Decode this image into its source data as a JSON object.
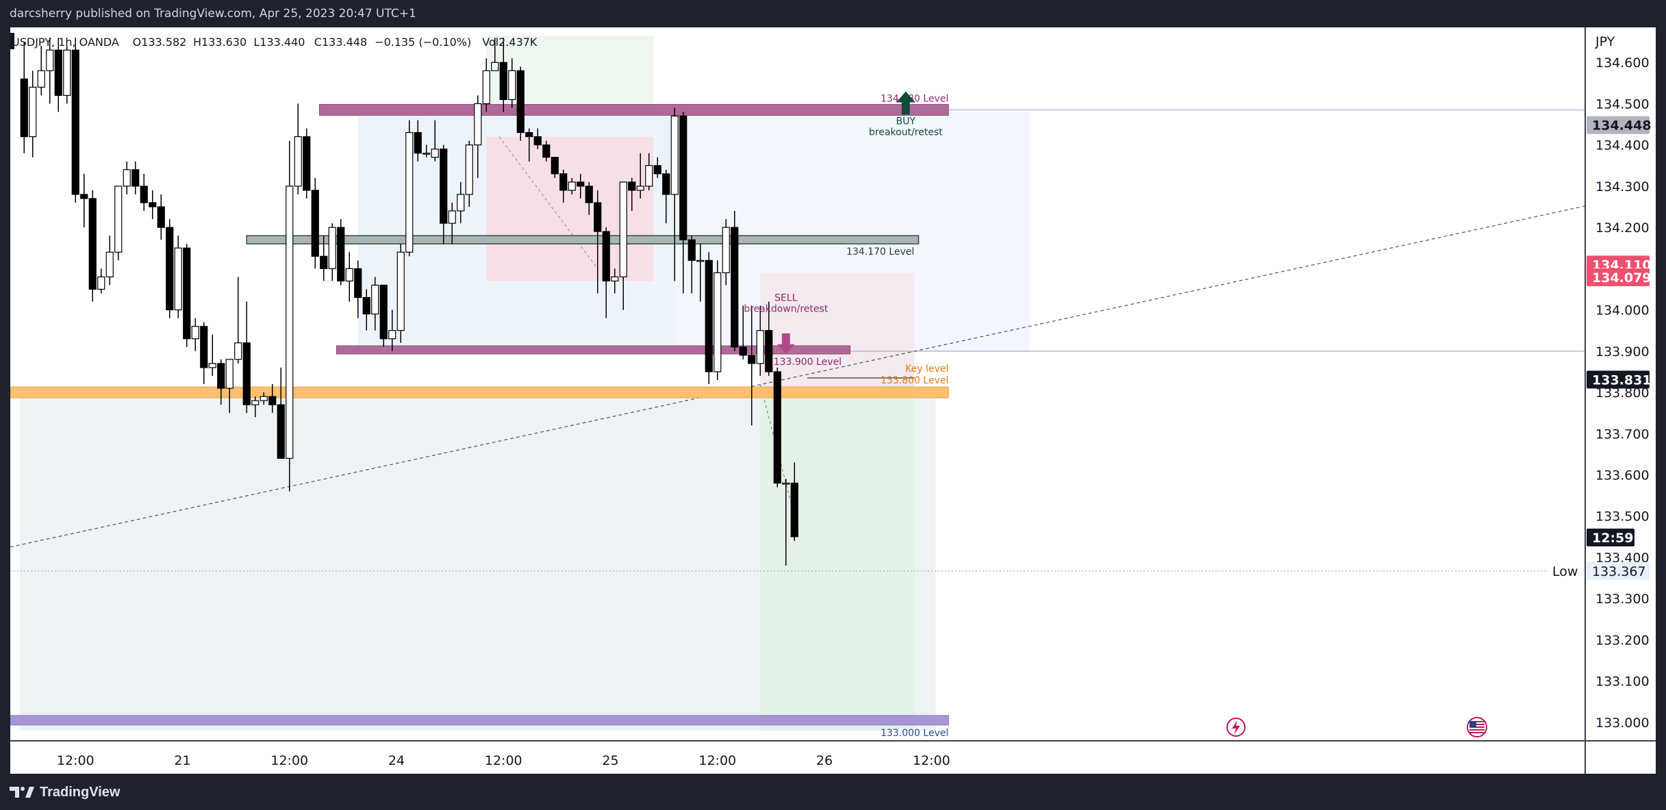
{
  "header": {
    "publisher_text": "darcsherry published on TradingView.com, Apr 25, 2023 20:47 UTC+1"
  },
  "legend": {
    "symbol": "USDJPY, 1h, OANDA",
    "open": "O133.582",
    "high": "H133.630",
    "low": "L133.440",
    "close": "C133.448",
    "change": "−0.135 (−0.10%)",
    "volume": "Vol2.437K"
  },
  "footer": {
    "brand": "TradingView"
  },
  "colors": {
    "candle_up": "#ffffff",
    "candle_down": "#000000",
    "level_magenta": "#b06a9a",
    "level_gray": "#a9b7b4",
    "level_orange": "#ffbf70",
    "level_purple": "#a897d8",
    "buy_arrow": "#0f4a3a",
    "sell_arrow": "#b04a86",
    "price_tag_red": "#f0506e",
    "price_tag_black": "#131722",
    "price_tag_gray": "#b2b5be"
  },
  "chart_data": {
    "type": "candlestick",
    "currency": "JPY",
    "ylim": [
      132.955,
      134.685
    ],
    "y_ticks": [
      "134.600",
      "134.500",
      "134.400",
      "134.300",
      "134.200",
      "134.000",
      "133.900",
      "133.800",
      "133.700",
      "133.600",
      "133.500",
      "133.400",
      "133.300",
      "133.200",
      "133.100",
      "133.000"
    ],
    "x_ticks": [
      {
        "label": "12:00",
        "bar": 6.5
      },
      {
        "label": "21",
        "bar": 19
      },
      {
        "label": "12:00",
        "bar": 31.5
      },
      {
        "label": "24",
        "bar": 44
      },
      {
        "label": "12:00",
        "bar": 56.5
      },
      {
        "label": "25",
        "bar": 69
      },
      {
        "label": "12:00",
        "bar": 81.5
      },
      {
        "label": "26",
        "bar": 94
      },
      {
        "label": "12:00",
        "bar": 106.5
      }
    ],
    "candles": [
      [
        134.56,
        134.65,
        134.38,
        134.42
      ],
      [
        134.42,
        134.58,
        134.37,
        134.54
      ],
      [
        134.54,
        134.64,
        134.52,
        134.58
      ],
      [
        134.58,
        134.66,
        134.5,
        134.63
      ],
      [
        134.63,
        134.66,
        134.48,
        134.52
      ],
      [
        134.52,
        134.64,
        134.5,
        134.63
      ],
      [
        134.63,
        134.66,
        134.26,
        134.28
      ],
      [
        134.28,
        134.33,
        134.2,
        134.27
      ],
      [
        134.27,
        134.29,
        134.02,
        134.05
      ],
      [
        134.05,
        134.1,
        134.04,
        134.08
      ],
      [
        134.08,
        134.18,
        134.06,
        134.14
      ],
      [
        134.14,
        134.3,
        134.12,
        134.3
      ],
      [
        134.3,
        134.36,
        134.28,
        134.34
      ],
      [
        134.34,
        134.36,
        134.28,
        134.3
      ],
      [
        134.3,
        134.33,
        134.24,
        134.26
      ],
      [
        134.26,
        134.29,
        134.22,
        134.25
      ],
      [
        134.25,
        134.28,
        134.17,
        134.2
      ],
      [
        134.2,
        134.22,
        133.98,
        134.0
      ],
      [
        134.0,
        134.18,
        133.98,
        134.15
      ],
      [
        134.15,
        134.16,
        133.91,
        133.93
      ],
      [
        133.93,
        133.98,
        133.9,
        133.96
      ],
      [
        133.96,
        133.97,
        133.82,
        133.86
      ],
      [
        133.86,
        133.94,
        133.84,
        133.87
      ],
      [
        133.87,
        133.88,
        133.77,
        133.81
      ],
      [
        133.81,
        133.88,
        133.75,
        133.88
      ],
      [
        133.88,
        134.08,
        133.87,
        133.92
      ],
      [
        133.92,
        134.02,
        133.75,
        133.77
      ],
      [
        133.77,
        133.79,
        133.74,
        133.78
      ],
      [
        133.78,
        133.8,
        133.77,
        133.79
      ],
      [
        133.79,
        133.82,
        133.75,
        133.77
      ],
      [
        133.77,
        133.86,
        133.64,
        133.64
      ],
      [
        133.64,
        134.41,
        133.56,
        134.3
      ],
      [
        134.3,
        134.5,
        134.28,
        134.42
      ],
      [
        134.42,
        134.44,
        134.27,
        134.29
      ],
      [
        134.29,
        134.32,
        134.1,
        134.13
      ],
      [
        134.13,
        134.18,
        134.07,
        134.1
      ],
      [
        134.1,
        134.21,
        134.07,
        134.2
      ],
      [
        134.2,
        134.22,
        134.06,
        134.07
      ],
      [
        134.07,
        134.14,
        134.02,
        134.1
      ],
      [
        134.1,
        134.12,
        133.98,
        134.03
      ],
      [
        134.03,
        134.05,
        133.95,
        133.99
      ],
      [
        133.99,
        134.08,
        133.95,
        134.06
      ],
      [
        134.06,
        134.06,
        133.91,
        133.93
      ],
      [
        133.93,
        134.0,
        133.9,
        133.95
      ],
      [
        133.95,
        134.16,
        133.92,
        134.14
      ],
      [
        134.14,
        134.46,
        134.13,
        134.43
      ],
      [
        134.43,
        134.46,
        134.36,
        134.38
      ],
      [
        134.38,
        134.4,
        134.37,
        134.38
      ],
      [
        134.37,
        134.46,
        134.36,
        134.39
      ],
      [
        134.39,
        134.4,
        134.16,
        134.21
      ],
      [
        134.21,
        134.26,
        134.16,
        134.24
      ],
      [
        134.24,
        134.31,
        134.21,
        134.28
      ],
      [
        134.28,
        134.41,
        134.25,
        134.4
      ],
      [
        134.4,
        134.52,
        134.32,
        134.5
      ],
      [
        134.5,
        134.61,
        134.48,
        134.58
      ],
      [
        134.58,
        134.66,
        134.58,
        134.6
      ],
      [
        134.6,
        134.66,
        134.48,
        134.51
      ],
      [
        134.51,
        134.61,
        134.49,
        134.58
      ],
      [
        134.58,
        134.59,
        134.41,
        134.43
      ],
      [
        134.43,
        134.44,
        134.36,
        134.42
      ],
      [
        134.42,
        134.44,
        134.39,
        134.4
      ],
      [
        134.4,
        134.41,
        134.36,
        134.37
      ],
      [
        134.37,
        134.37,
        134.32,
        134.33
      ],
      [
        134.33,
        134.34,
        134.26,
        134.29
      ],
      [
        134.29,
        134.32,
        134.28,
        134.31
      ],
      [
        134.31,
        134.33,
        134.27,
        134.3
      ],
      [
        134.3,
        134.31,
        134.23,
        134.26
      ],
      [
        134.26,
        134.29,
        134.04,
        134.19
      ],
      [
        134.19,
        134.2,
        133.98,
        134.07
      ],
      [
        134.07,
        134.1,
        134.04,
        134.08
      ],
      [
        134.08,
        134.3,
        134.0,
        134.31
      ],
      [
        134.31,
        134.32,
        134.24,
        134.29
      ],
      [
        134.29,
        134.38,
        134.27,
        134.3
      ],
      [
        134.3,
        134.38,
        134.29,
        134.35
      ],
      [
        134.35,
        134.37,
        134.32,
        134.33
      ],
      [
        134.33,
        134.34,
        134.21,
        134.28
      ],
      [
        134.28,
        134.49,
        134.07,
        134.47
      ],
      [
        134.47,
        134.48,
        134.04,
        134.17
      ],
      [
        134.17,
        134.18,
        134.04,
        134.12
      ],
      [
        134.12,
        134.16,
        134.02,
        134.12
      ],
      [
        134.12,
        134.14,
        133.82,
        133.85
      ],
      [
        133.85,
        134.12,
        133.83,
        134.09
      ],
      [
        134.09,
        134.22,
        134.06,
        134.2
      ],
      [
        134.2,
        134.24,
        133.9,
        133.91
      ],
      [
        133.91,
        134.01,
        133.88,
        133.89
      ],
      [
        133.89,
        134.01,
        133.72,
        133.87
      ],
      [
        133.87,
        134.01,
        133.84,
        133.95
      ],
      [
        133.95,
        134.02,
        133.84,
        133.85
      ],
      [
        133.85,
        133.86,
        133.57,
        133.58
      ],
      [
        133.58,
        133.59,
        133.38,
        133.58
      ],
      [
        133.58,
        133.63,
        133.44,
        133.45
      ]
    ],
    "levels": [
      {
        "label": "134.480 Level",
        "price": 134.48,
        "color": "#b06a9a"
      },
      {
        "label": "134.170 Level",
        "price": 134.17,
        "color": "#a9b7b4"
      },
      {
        "label": "133.900 Level",
        "price": 133.9,
        "color": "#b06a9a"
      },
      {
        "label": "Key level",
        "label2": "133.800 Level",
        "price": 133.8,
        "color": "#ffbf70"
      },
      {
        "label": "133.000 Level",
        "price": 133.0,
        "color": "#a897d8"
      }
    ],
    "annotations": {
      "buy": {
        "title": "BUY",
        "subtitle": "breakout/retest"
      },
      "sell": {
        "title": "SELL",
        "subtitle": "breakdown/retest"
      }
    },
    "price_tags": [
      {
        "label": "134.448",
        "price": 134.448,
        "style": "gray"
      },
      {
        "label": "134.110",
        "price": 134.11,
        "style": "red"
      },
      {
        "label": "134.079",
        "price": 134.079,
        "style": "red"
      },
      {
        "label": "133.831",
        "price": 133.831,
        "style": "black"
      },
      {
        "label": "12:59",
        "price": 133.448,
        "style": "black"
      },
      {
        "label": "133.367",
        "price": 133.367,
        "style": "light"
      }
    ],
    "low_label": "Low"
  }
}
